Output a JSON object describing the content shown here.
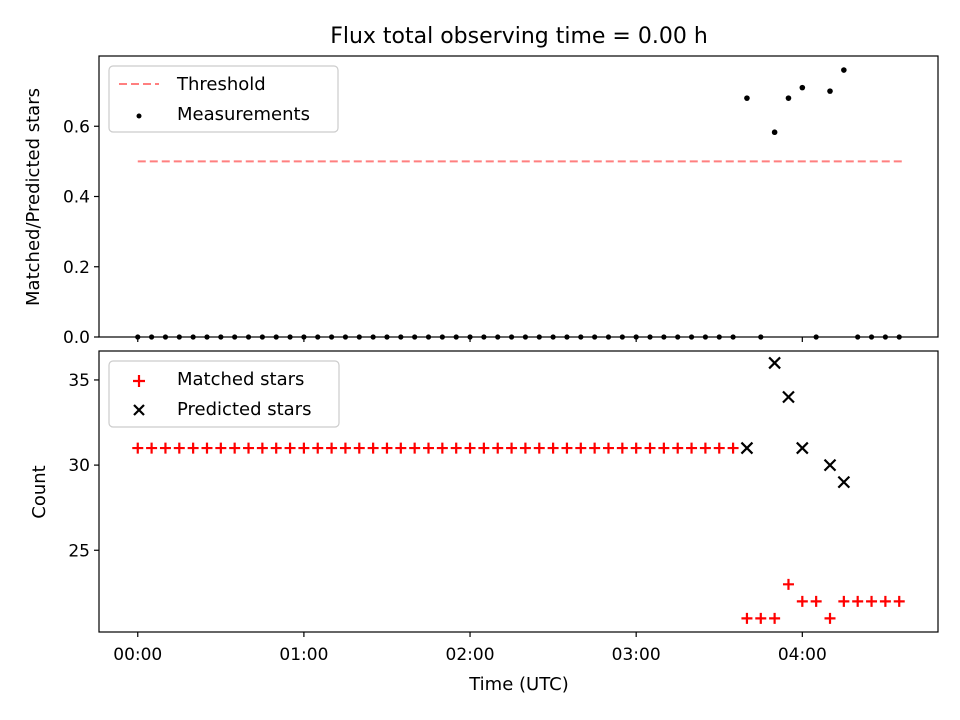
{
  "chart_data": [
    {
      "type": "scatter",
      "title": "Flux total observing time = 0.00 h",
      "xlabel": "",
      "ylabel": "Matched/Predicted stars",
      "xlim_hours": [
        -0.2333,
        4.8167
      ],
      "ylim": [
        0,
        0.8
      ],
      "yticks": [
        0.0,
        0.2,
        0.4,
        0.6
      ],
      "ytick_labels": [
        "0.0",
        "0.2",
        "0.4",
        "0.6"
      ],
      "legend": {
        "placement": "top-left",
        "entries": [
          "Threshold",
          "Measurements"
        ]
      },
      "threshold": {
        "name": "Threshold",
        "y": 0.5,
        "x_start_hours": 0.0,
        "x_end_hours": 4.6,
        "color": "#ff7f7f"
      },
      "measurements": {
        "name": "Measurements",
        "color": "#000000",
        "zero_times_hours": [
          0.0,
          0.0833,
          0.1667,
          0.25,
          0.3333,
          0.4167,
          0.5,
          0.5833,
          0.6667,
          0.75,
          0.8333,
          0.9167,
          1.0,
          1.0833,
          1.1667,
          1.25,
          1.3333,
          1.4167,
          1.5,
          1.5833,
          1.6667,
          1.75,
          1.8333,
          1.9167,
          2.0,
          2.0833,
          2.1667,
          2.25,
          2.3333,
          2.4167,
          2.5,
          2.5833,
          2.6667,
          2.75,
          2.8333,
          2.9167,
          3.0,
          3.0833,
          3.1667,
          3.25,
          3.3333,
          3.4167,
          3.5,
          3.5833,
          3.75,
          4.0833,
          4.3333,
          4.4167,
          4.5,
          4.5833
        ],
        "points": [
          [
            3.6667,
            0.68
          ],
          [
            3.8333,
            0.583
          ],
          [
            3.9167,
            0.68
          ],
          [
            4.0,
            0.71
          ],
          [
            4.1667,
            0.7
          ],
          [
            4.25,
            0.76
          ]
        ]
      }
    },
    {
      "type": "scatter",
      "title": "",
      "xlabel": "Time (UTC)",
      "ylabel": "Count",
      "xlim_hours": [
        -0.2333,
        4.8167
      ],
      "ylim": [
        20.2,
        36.7
      ],
      "yticks": [
        25,
        30,
        35
      ],
      "ytick_labels": [
        "25",
        "30",
        "35"
      ],
      "xticks_hours": [
        0,
        1,
        2,
        3,
        4
      ],
      "xtick_labels": [
        "00:00",
        "01:00",
        "02:00",
        "03:00",
        "04:00"
      ],
      "legend": {
        "placement": "top-left",
        "entries": [
          "Matched stars",
          "Predicted stars"
        ]
      },
      "matched": {
        "name": "Matched stars",
        "color": "#ff0000",
        "constant_value": 31,
        "constant_times_hours": [
          0.0,
          0.0833,
          0.1667,
          0.25,
          0.3333,
          0.4167,
          0.5,
          0.5833,
          0.6667,
          0.75,
          0.8333,
          0.9167,
          1.0,
          1.0833,
          1.1667,
          1.25,
          1.3333,
          1.4167,
          1.5,
          1.5833,
          1.6667,
          1.75,
          1.8333,
          1.9167,
          2.0,
          2.0833,
          2.1667,
          2.25,
          2.3333,
          2.4167,
          2.5,
          2.5833,
          2.6667,
          2.75,
          2.8333,
          2.9167,
          3.0,
          3.0833,
          3.1667,
          3.25,
          3.3333,
          3.4167,
          3.5,
          3.5833
        ],
        "points": [
          [
            3.6667,
            21
          ],
          [
            3.75,
            21
          ],
          [
            3.8333,
            21
          ],
          [
            3.9167,
            23
          ],
          [
            4.0,
            22
          ],
          [
            4.0833,
            22
          ],
          [
            4.1667,
            21
          ],
          [
            4.25,
            22
          ],
          [
            4.3333,
            22
          ],
          [
            4.4167,
            22
          ],
          [
            4.5,
            22
          ],
          [
            4.5833,
            22
          ]
        ]
      },
      "predicted": {
        "name": "Predicted stars",
        "color": "#000000",
        "points": [
          [
            3.6667,
            31
          ],
          [
            3.8333,
            36
          ],
          [
            3.9167,
            34
          ],
          [
            4.0,
            31
          ],
          [
            4.1667,
            30
          ],
          [
            4.25,
            29
          ]
        ]
      }
    }
  ]
}
